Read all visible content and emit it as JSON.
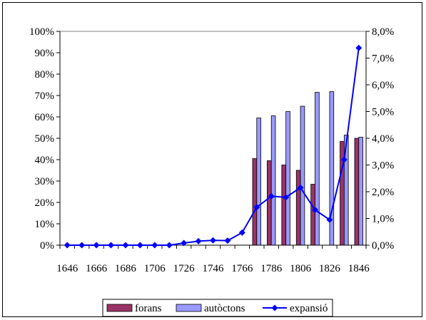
{
  "chart_data": {
    "type": "bar",
    "categories": [
      "1646",
      "1656",
      "1666",
      "1676",
      "1686",
      "1696",
      "1706",
      "1716",
      "1726",
      "1736",
      "1746",
      "1756",
      "1766",
      "1776",
      "1786",
      "1796",
      "1806",
      "1816",
      "1826",
      "1836",
      "1846"
    ],
    "x_tick_labels": [
      "1646",
      "1666",
      "1686",
      "1706",
      "1726",
      "1746",
      "1766",
      "1786",
      "1806",
      "1826",
      "1846"
    ],
    "y_left": {
      "ylim": [
        0,
        100
      ],
      "ticks": [
        "0%",
        "10%",
        "20%",
        "30%",
        "40%",
        "50%",
        "60%",
        "70%",
        "80%",
        "90%",
        "100%"
      ]
    },
    "y_right": {
      "ylim": [
        0,
        8
      ],
      "ticks": [
        "0,0%",
        "1,0%",
        "2,0%",
        "3,0%",
        "4,0%",
        "5,0%",
        "6,0%",
        "7,0%",
        "8,0%"
      ]
    },
    "series": [
      {
        "name": "forans",
        "kind": "bar",
        "axis": "left",
        "color": "#993366",
        "values": [
          null,
          null,
          null,
          null,
          null,
          null,
          null,
          null,
          null,
          null,
          null,
          null,
          null,
          40.5,
          39.5,
          37.5,
          35,
          28.5,
          null,
          48.5,
          50
        ]
      },
      {
        "name": "autòctons",
        "kind": "bar",
        "axis": "left",
        "color": "#9999ff",
        "values": [
          null,
          null,
          null,
          null,
          null,
          null,
          null,
          null,
          null,
          null,
          null,
          null,
          null,
          59.5,
          60.5,
          62.5,
          65,
          71.5,
          71.8,
          51.5,
          50.5
        ]
      },
      {
        "name": "expansió",
        "kind": "line",
        "axis": "right",
        "color": "#0000ff",
        "marker": "diamond",
        "values": [
          0,
          0,
          0,
          0,
          0,
          0,
          0,
          0,
          0.08,
          0.15,
          0.18,
          0.17,
          0.47,
          1.42,
          1.83,
          1.79,
          2.15,
          1.32,
          0.95,
          3.2,
          7.38
        ]
      }
    ],
    "legend_position": "bottom",
    "grid": false,
    "plot_background": "#ffffff"
  }
}
